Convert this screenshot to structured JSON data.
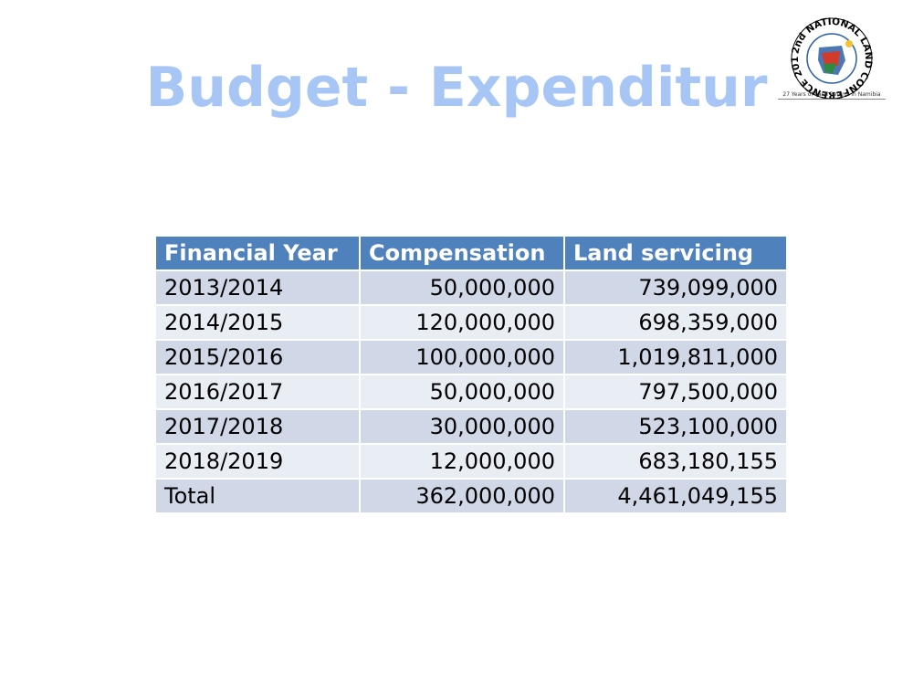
{
  "slide": {
    "title": "Budget - Expenditur"
  },
  "logo": {
    "ring_text": "2nd NATIONAL LAND CONFERENCE 2018",
    "caption": "27 Years of Land Reform in Namibia",
    "colors": {
      "ring": "#000000",
      "blue": "#2b5fa8",
      "red": "#d43a2a",
      "green": "#2e8b3e",
      "yellow": "#f4c430"
    }
  },
  "table": {
    "headers": [
      "Financial Year",
      "Compensation",
      "Land servicing"
    ],
    "rows": [
      [
        "2013/2014",
        "50,000,000",
        "739,099,000"
      ],
      [
        "2014/2015",
        "120,000,000",
        "698,359,000"
      ],
      [
        "2015/2016",
        "100,000,000",
        "1,019,811,000"
      ],
      [
        "2016/2017",
        "50,000,000",
        "797,500,000"
      ],
      [
        "2017/2018",
        "30,000,000",
        "523,100,000"
      ],
      [
        "2018/2019",
        "12,000,000",
        "683,180,155"
      ],
      [
        "Total",
        "362,000,000",
        "4,461,049,155"
      ]
    ],
    "colors": {
      "header": "#4f81bd",
      "row_odd": "#d0d8e8",
      "row_even": "#e9edf4"
    }
  }
}
